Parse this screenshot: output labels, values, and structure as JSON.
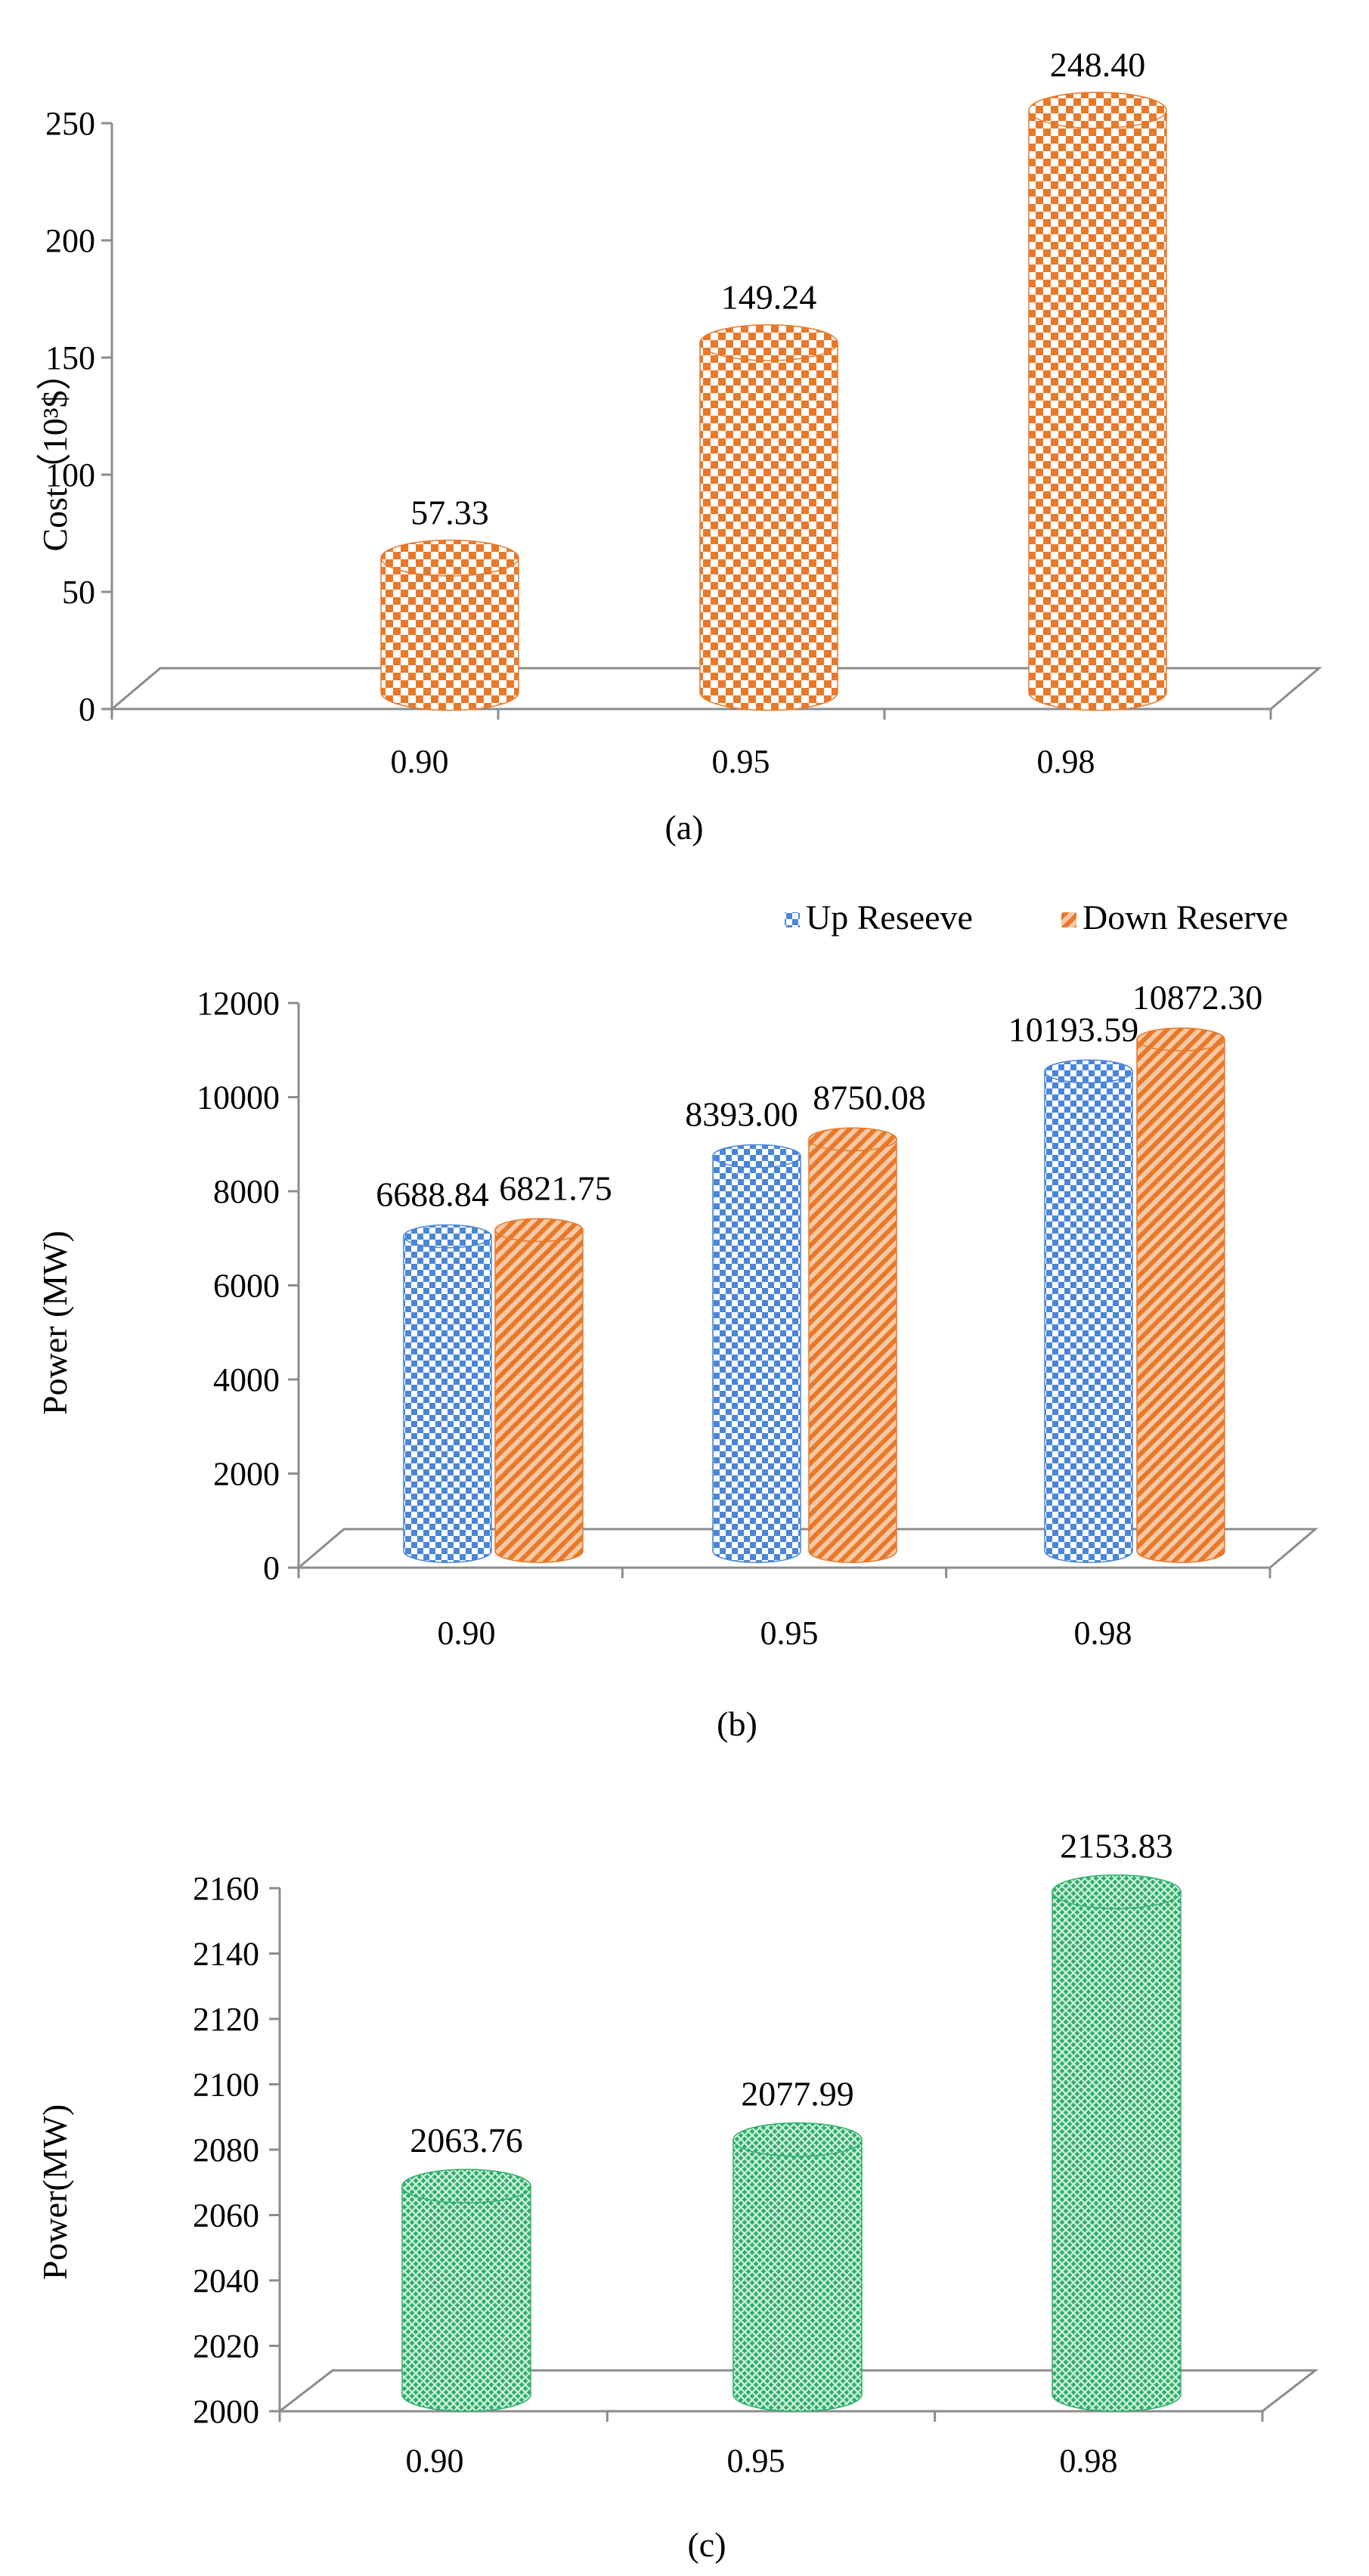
{
  "chart_data": [
    {
      "panel": "a",
      "type": "bar",
      "title": "",
      "caption": "(a)",
      "ylabel": "Cost（10³$）",
      "xlabel": "",
      "categories": [
        "0.90",
        "0.95",
        "0.98"
      ],
      "series": [
        {
          "name": "Cost",
          "color": "#E8792A",
          "pattern": "checker",
          "values": [
            57.33,
            149.24,
            248.4
          ],
          "labels": [
            "57.33",
            "149.24",
            "248.40"
          ]
        }
      ],
      "yticks": [
        "0",
        "50",
        "100",
        "150",
        "200",
        "250"
      ],
      "ylim": [
        0,
        250
      ],
      "legend": null
    },
    {
      "panel": "b",
      "type": "bar",
      "title": "",
      "caption": "(b)",
      "ylabel": "Power (MW)",
      "xlabel": "",
      "categories": [
        "0.90",
        "0.95",
        "0.98"
      ],
      "series": [
        {
          "name": "Up Reseeve",
          "color": "#4A86D8",
          "pattern": "checker",
          "values": [
            6688.84,
            8393.0,
            10193.59
          ],
          "labels": [
            "6688.84",
            "8393.00",
            "10193.59"
          ]
        },
        {
          "name": "Down Reserve",
          "color": "#E8792A",
          "pattern": "diagonal",
          "values": [
            6821.75,
            8750.08,
            10872.3
          ],
          "labels": [
            "6821.75",
            "8750.08",
            "10872.30"
          ]
        }
      ],
      "yticks": [
        "0",
        "2000",
        "4000",
        "6000",
        "8000",
        "10000",
        "12000"
      ],
      "ylim": [
        0,
        12000
      ],
      "legend": "top-right"
    },
    {
      "panel": "c",
      "type": "bar",
      "title": "",
      "caption": "(c)",
      "ylabel": "Power(MW)",
      "xlabel": "",
      "categories": [
        "0.90",
        "0.95",
        "0.98"
      ],
      "series": [
        {
          "name": "Power",
          "color": "#2EAF6A",
          "pattern": "crosshatch",
          "values": [
            2063.76,
            2077.99,
            2153.83
          ],
          "labels": [
            "2063.76",
            "2077.99",
            "2153.83"
          ]
        }
      ],
      "yticks": [
        "2000",
        "2020",
        "2040",
        "2060",
        "2080",
        "2100",
        "2120",
        "2140",
        "2160"
      ],
      "ylim": [
        2000,
        2160
      ],
      "legend": null
    }
  ]
}
